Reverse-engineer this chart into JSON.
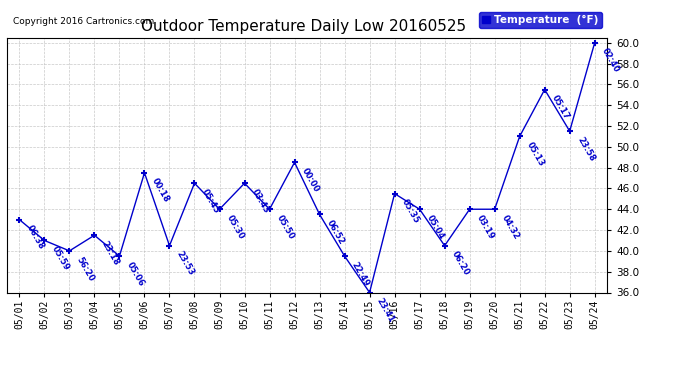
{
  "title": "Outdoor Temperature Daily Low 20160525",
  "copyright": "Copyright 2016 Cartronics.com",
  "legend_label": "Temperature  (°F)",
  "x_labels": [
    "05/01",
    "05/02",
    "05/03",
    "05/04",
    "05/05",
    "05/06",
    "05/07",
    "05/08",
    "05/09",
    "05/10",
    "05/11",
    "05/12",
    "05/13",
    "05/14",
    "05/15",
    "05/16",
    "05/17",
    "05/18",
    "05/19",
    "05/20",
    "05/21",
    "05/22",
    "05/23",
    "05/24"
  ],
  "y_values": [
    43.0,
    41.0,
    40.0,
    41.5,
    39.5,
    47.5,
    40.5,
    46.5,
    44.0,
    46.5,
    44.0,
    48.5,
    43.5,
    39.5,
    36.0,
    45.5,
    44.0,
    40.5,
    44.0,
    44.0,
    51.0,
    55.5,
    51.5,
    60.0
  ],
  "point_labels": [
    "06:38",
    "05:59",
    "56:20",
    "23:18",
    "05:06",
    "00:18",
    "23:53",
    "05:45",
    "05:30",
    "03:43",
    "05:50",
    "00:00",
    "06:52",
    "22:49",
    "23:41",
    "05:35",
    "05:04",
    "06:20",
    "03:19",
    "04:32",
    "05:13",
    "05:17",
    "23:58",
    "02:40"
  ],
  "ylim_min": 36.0,
  "ylim_max": 60.5,
  "yticks": [
    36.0,
    38.0,
    40.0,
    42.0,
    44.0,
    46.0,
    48.0,
    50.0,
    52.0,
    54.0,
    56.0,
    58.0,
    60.0
  ],
  "line_color": "#0000CC",
  "bg_color": "#FFFFFF",
  "grid_color": "#BBBBBB",
  "label_color": "#0000CC",
  "legend_bg": "#0000CC",
  "legend_fg": "#FFFFFF",
  "title_color": "#000000",
  "copyright_color": "#000000"
}
